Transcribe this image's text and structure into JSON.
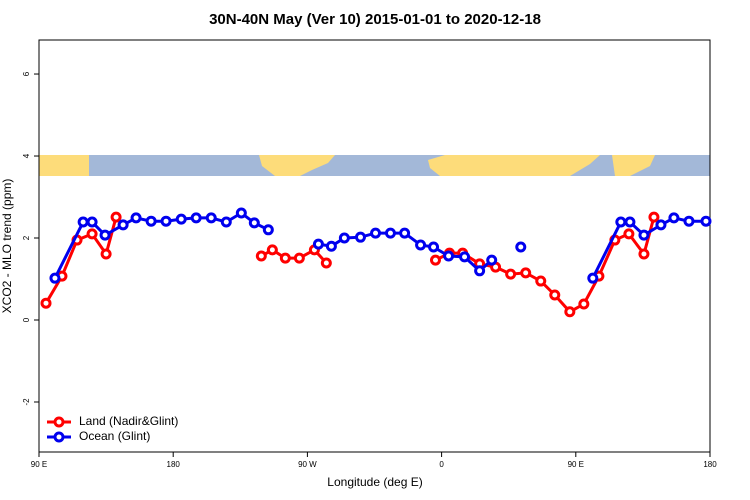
{
  "chart_data": {
    "type": "line",
    "title": "30N-40N May (Ver 10)   2015-01-01 to 2020-12-18",
    "x_label": "Longitude (deg E)",
    "y_label": "XCO2 - MLO trend (ppm)",
    "xlim": [
      90,
      540
    ],
    "ylim": [
      -3.22,
      6.83
    ],
    "xticks": [
      {
        "value": 90,
        "label": "90 E"
      },
      180,
      {
        "value": 270,
        "label": "90 W"
      },
      {
        "value": 360,
        "label": "0"
      },
      {
        "value": 450,
        "label": "90 E"
      },
      {
        "value": 540,
        "label": "180"
      }
    ],
    "yticks": [
      -2,
      0,
      2,
      4,
      6
    ],
    "legend": "bottom-left",
    "series": [
      {
        "name": "Land (Nadir&Glint)",
        "color": "#ff0000",
        "x": [
          94.7,
          105.4,
          115.5,
          125.6,
          135.0,
          141.7,
          null,
          239.1,
          246.5,
          255.2,
          264.6,
          274.7,
          282.7,
          null,
          355.9,
          365.3,
          374.1,
          385.5,
          396.2,
          406.3,
          416.4,
          426.5,
          435.9,
          446.0,
          455.4,
          465.5,
          476.2,
          485.6,
          495.7,
          502.4
        ],
        "values": [
          0.41,
          1.07,
          1.95,
          2.1,
          1.61,
          2.51,
          null,
          1.56,
          1.71,
          1.51,
          1.51,
          1.71,
          1.39,
          null,
          1.46,
          1.63,
          1.63,
          1.37,
          1.29,
          1.12,
          1.15,
          0.95,
          0.61,
          0.2,
          0.39,
          1.07,
          1.95,
          2.1,
          1.61,
          2.51
        ]
      },
      {
        "name": "Ocean (Glint)",
        "color": "#0000ee",
        "x": [
          100.7,
          119.6,
          125.6,
          134.3,
          146.4,
          155.1,
          165.2,
          175.2,
          185.4,
          195.4,
          205.5,
          215.6,
          225.7,
          234.4,
          243.8,
          null,
          277.4,
          286.1,
          294.8,
          305.6,
          315.7,
          325.7,
          335.2,
          345.9,
          354.6,
          364.7,
          375.4,
          385.5,
          393.6,
          null,
          413.1,
          null,
          461.4,
          480.2,
          486.3,
          495.7,
          507.1,
          515.8,
          525.9,
          537.3
        ],
        "values": [
          1.02,
          2.39,
          2.39,
          2.07,
          2.32,
          2.49,
          2.41,
          2.41,
          2.46,
          2.49,
          2.49,
          2.39,
          2.61,
          2.37,
          2.2,
          null,
          1.85,
          1.8,
          2.0,
          2.02,
          2.12,
          2.12,
          2.12,
          1.83,
          1.78,
          1.56,
          1.54,
          1.2,
          1.46,
          null,
          1.78,
          null,
          1.02,
          2.39,
          2.39,
          2.07,
          2.32,
          2.49,
          2.41,
          2.41
        ]
      }
    ]
  }
}
